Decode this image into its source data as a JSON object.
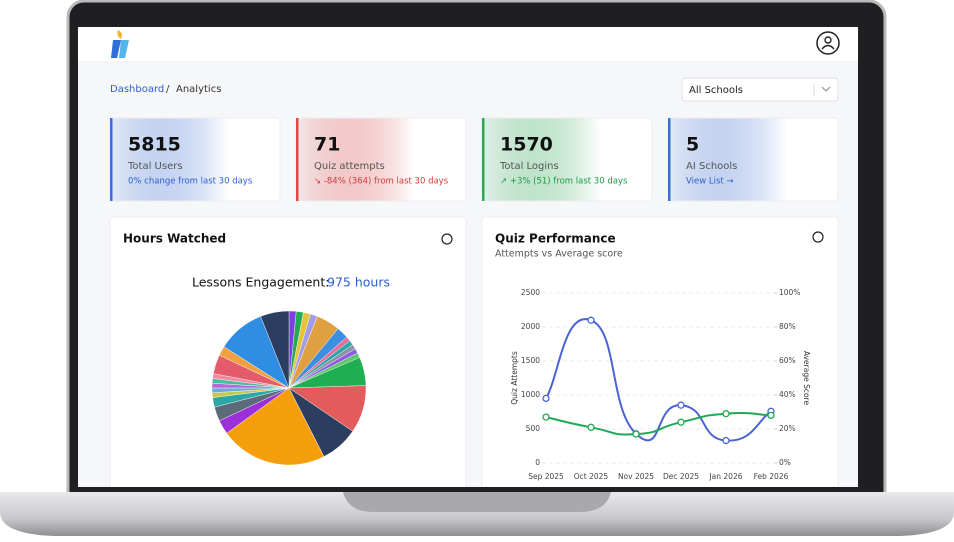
{
  "header": {
    "breadcrumb": [
      "Dashboard",
      "Analytics"
    ],
    "school_select": "All Schools"
  },
  "stats": [
    {
      "value": 5815,
      "label": "Total Users",
      "note": "0% change from last 30 days",
      "color": "#3b6fd8",
      "note_color": "#2d5fcf"
    },
    {
      "value": 71,
      "label": "Quiz attempts",
      "note": "↘ -84% (364) from last 30 days",
      "color": "#e04848",
      "note_color": "#d23a3a"
    },
    {
      "value": 1570,
      "label": "Total Logins",
      "note": "↗ +3% (51) from last 30 days",
      "color": "#2aa952",
      "note_color": "#1f9a46"
    },
    {
      "value": 5,
      "label": "AI Schools",
      "note": "View List →",
      "color": "#3b6fd8",
      "note_color": "#2d5fcf"
    }
  ],
  "panels": [
    {
      "title": "Hours Watched"
    },
    {
      "title": "Quiz Performance",
      "subtitle": "Attempts vs Average score"
    }
  ],
  "chart_data": [
    {
      "type": "pie",
      "title": "Lessons Engagement:",
      "subtitle": "975 hours",
      "values": [
        1.5,
        1.5,
        1.5,
        1.5,
        5,
        2.5,
        1,
        1,
        1,
        1,
        1,
        6,
        10,
        8,
        22.5,
        3,
        3,
        2,
        1,
        1,
        1,
        1,
        1,
        4,
        2,
        10,
        6
      ],
      "colors": [
        "#7b3fe4",
        "#22aa55",
        "#e5c43a",
        "#a29be8",
        "#e0a040",
        "#3b8ee0",
        "#e86b9a",
        "#2aa6a6",
        "#8a94a6",
        "#8e5ce0",
        "#5fc46b",
        "#1fae50",
        "#e45b5b",
        "#2c3e60",
        "#f59e0b",
        "#9b30d9",
        "#5b6b7a",
        "#2aa6a6",
        "#c7c94a",
        "#6fa8dc",
        "#b56bd6",
        "#46c0a0",
        "#f08aa0",
        "#e45b6b",
        "#f0a040",
        "#2f8de4",
        "#2c3e60"
      ]
    },
    {
      "type": "line",
      "categories": [
        "Sep 2025",
        "Oct 2025",
        "Nov 2025",
        "Dec 2025",
        "Jan 2026",
        "Feb 2026"
      ],
      "series": [
        {
          "color": "#4a63d6",
          "values": [
            950,
            2100,
            430,
            850,
            330,
            760
          ]
        },
        {
          "color": "#1fa856",
          "values": [
            27,
            21,
            17,
            24,
            29,
            28
          ],
          "axis": "y2"
        }
      ],
      "ylabel": "Quiz Attempts",
      "y2label": "Average Score",
      "ylim": [
        0,
        2500
      ],
      "yticks": [
        0,
        500,
        1000,
        1500,
        2000,
        2500
      ],
      "y2lim": [
        0,
        100
      ],
      "y2ticks": [
        {
          "value": 0,
          "label": "0%"
        },
        {
          "value": 20,
          "label": "20%"
        },
        {
          "value": 40,
          "label": "40%"
        },
        {
          "value": 60,
          "label": "60%"
        },
        {
          "value": 80,
          "label": "80%"
        },
        {
          "value": 100,
          "label": "100%"
        }
      ],
      "grid": true
    }
  ]
}
